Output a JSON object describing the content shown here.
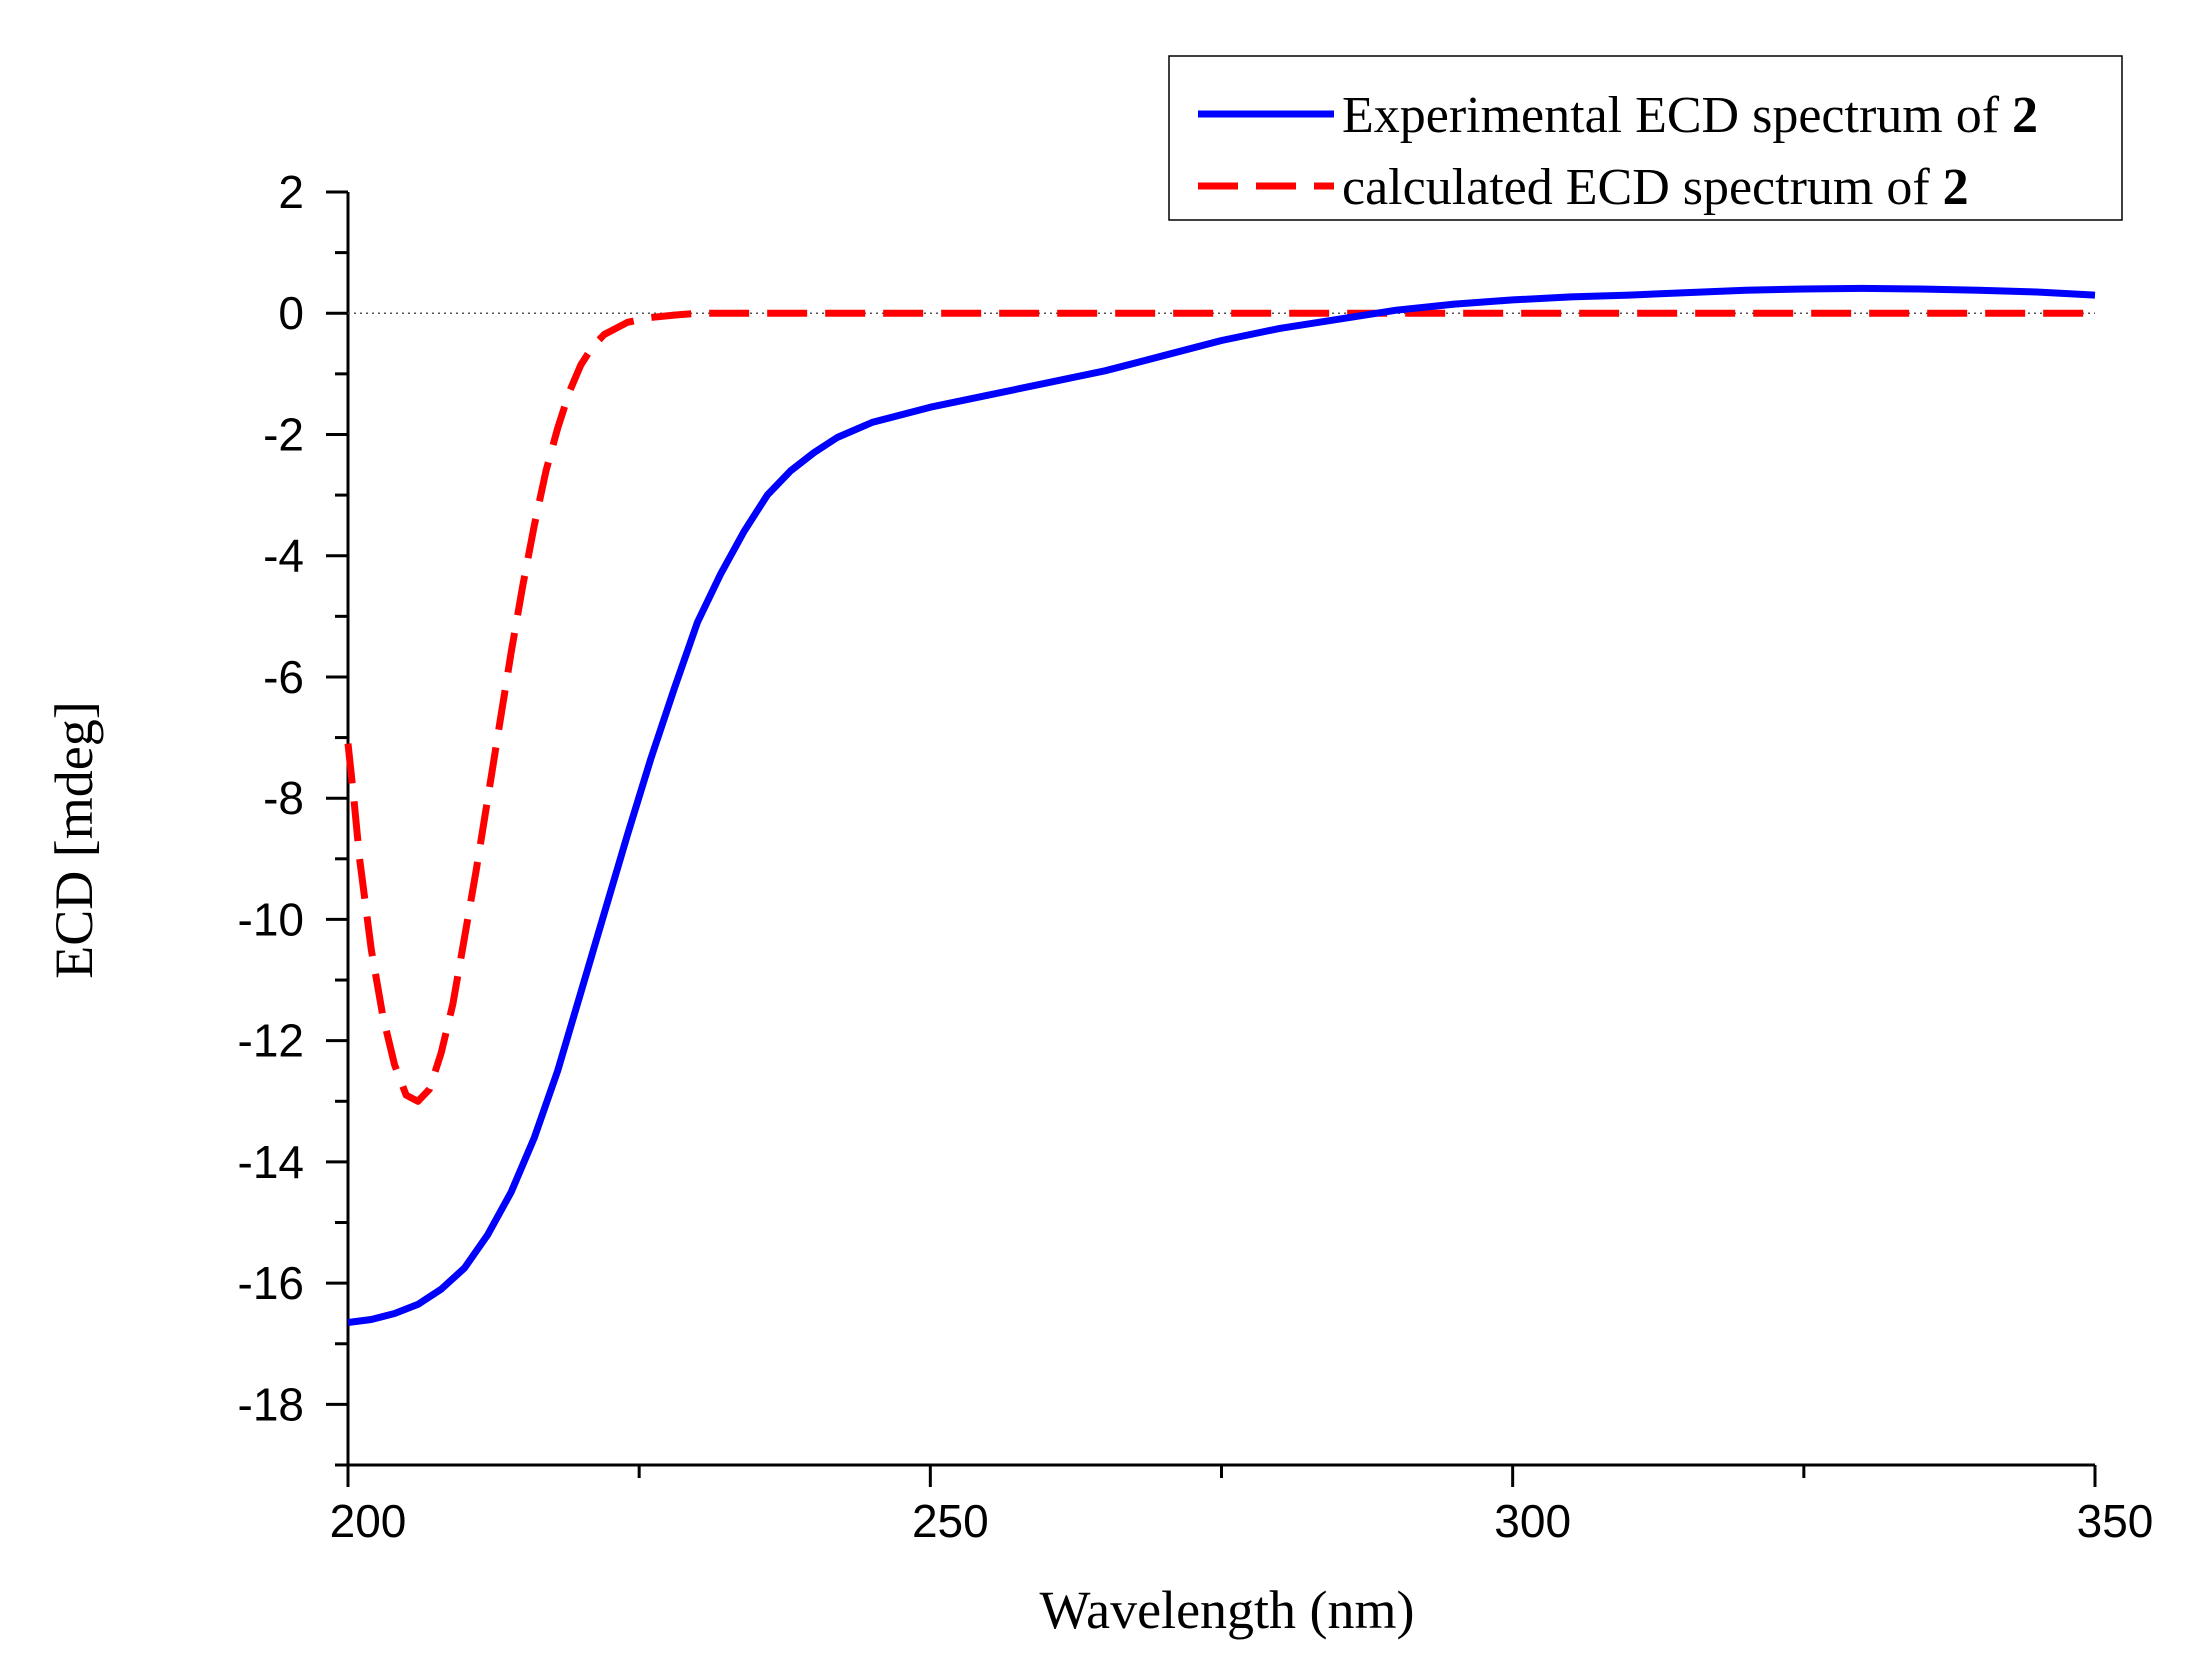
{
  "chart_data": {
    "type": "line",
    "title": "",
    "xlabel": "Wavelength (nm)",
    "ylabel": "ECD [mdeg]",
    "xlim": [
      200,
      350
    ],
    "ylim": [
      -19,
      2
    ],
    "x_ticks": [
      200,
      250,
      300,
      350
    ],
    "x_tick_labels": [
      "200",
      "250",
      "300",
      "350"
    ],
    "y_ticks": [
      2,
      0,
      -2,
      -4,
      -6,
      -8,
      -10,
      -12,
      -14,
      -16,
      -18
    ],
    "y_tick_labels": [
      "2",
      "0",
      "-2",
      "-4",
      "-6",
      "-8",
      "-10",
      "-12",
      "-14",
      "-16",
      "-18"
    ],
    "reference_line": 0,
    "grid": false,
    "legend_position": "top-right",
    "legend": [
      {
        "prefix": "Experimental ECD spectrum of ",
        "compound": "2"
      },
      {
        "prefix": "calculated ECD spectrum of ",
        "compound": "2"
      }
    ],
    "series": [
      {
        "name": "Experimental ECD spectrum of 2",
        "color": "#0000ff",
        "style": "solid",
        "points": [
          [
            200,
            -16.65
          ],
          [
            202,
            -16.6
          ],
          [
            204,
            -16.5
          ],
          [
            206,
            -16.35
          ],
          [
            208,
            -16.1
          ],
          [
            210,
            -15.75
          ],
          [
            212,
            -15.2
          ],
          [
            214,
            -14.5
          ],
          [
            216,
            -13.6
          ],
          [
            218,
            -12.5
          ],
          [
            220,
            -11.2
          ],
          [
            222,
            -9.9
          ],
          [
            224,
            -8.6
          ],
          [
            226,
            -7.35
          ],
          [
            228,
            -6.2
          ],
          [
            230,
            -5.1
          ],
          [
            232,
            -4.3
          ],
          [
            234,
            -3.6
          ],
          [
            236,
            -3.0
          ],
          [
            238,
            -2.6
          ],
          [
            240,
            -2.3
          ],
          [
            242,
            -2.05
          ],
          [
            245,
            -1.8
          ],
          [
            250,
            -1.55
          ],
          [
            255,
            -1.35
          ],
          [
            260,
            -1.15
          ],
          [
            265,
            -0.95
          ],
          [
            270,
            -0.7
          ],
          [
            275,
            -0.45
          ],
          [
            280,
            -0.25
          ],
          [
            285,
            -0.1
          ],
          [
            290,
            0.05
          ],
          [
            295,
            0.15
          ],
          [
            300,
            0.22
          ],
          [
            305,
            0.27
          ],
          [
            310,
            0.3
          ],
          [
            315,
            0.34
          ],
          [
            320,
            0.38
          ],
          [
            325,
            0.4
          ],
          [
            330,
            0.41
          ],
          [
            335,
            0.4
          ],
          [
            340,
            0.38
          ],
          [
            345,
            0.35
          ],
          [
            350,
            0.3
          ]
        ]
      },
      {
        "name": "calculated ECD spectrum of 2",
        "color": "#ff0000",
        "style": "dashed",
        "points": [
          [
            200,
            -7.1
          ],
          [
            200.5,
            -8.0
          ],
          [
            201,
            -9.0
          ],
          [
            202,
            -10.5
          ],
          [
            203,
            -11.6
          ],
          [
            204,
            -12.4
          ],
          [
            205,
            -12.9
          ],
          [
            206,
            -13.0
          ],
          [
            207,
            -12.8
          ],
          [
            208,
            -12.2
          ],
          [
            209,
            -11.4
          ],
          [
            210,
            -10.3
          ],
          [
            211,
            -9.2
          ],
          [
            212,
            -8.0
          ],
          [
            213,
            -6.8
          ],
          [
            214,
            -5.6
          ],
          [
            215,
            -4.5
          ],
          [
            216,
            -3.5
          ],
          [
            217,
            -2.6
          ],
          [
            218,
            -1.9
          ],
          [
            219,
            -1.3
          ],
          [
            220,
            -0.85
          ],
          [
            221,
            -0.55
          ],
          [
            222,
            -0.35
          ],
          [
            224,
            -0.15
          ],
          [
            226,
            -0.07
          ],
          [
            228,
            -0.03
          ],
          [
            230,
            0
          ],
          [
            240,
            0
          ],
          [
            250,
            0
          ],
          [
            300,
            0
          ],
          [
            350,
            0
          ]
        ]
      }
    ]
  }
}
